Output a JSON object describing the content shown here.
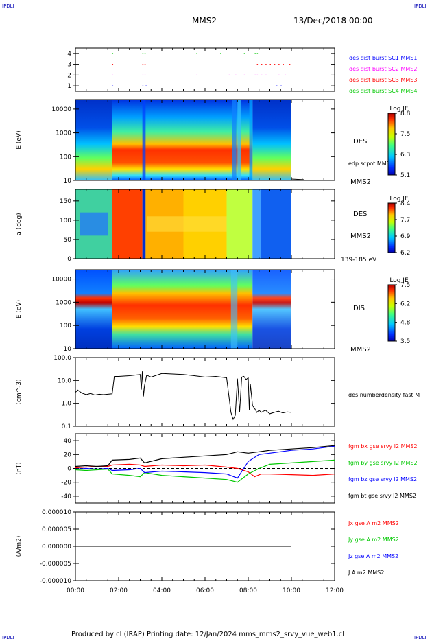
{
  "corner_label": "IPDLI",
  "header": {
    "spacecraft": "MMS2",
    "date": "13/Dec/2018 00:00"
  },
  "footer": {
    "text": "Produced by cl (IRAP)   Printing date: 12/Jan/2024   mms_mms2_srvy_vue_web1.cl"
  },
  "colors": {
    "ink": "#000000",
    "blue": "#0000ff",
    "red": "#ff0000",
    "green": "#00c800",
    "magenta": "#ff00ff",
    "navy": "#0000b4"
  },
  "chart_data": [
    {
      "id": "burst",
      "type": "scatter",
      "yticks": [
        "1",
        "2",
        "3",
        "4"
      ],
      "ylim": [
        0.5,
        4.5
      ],
      "xlim_hours": [
        0,
        12
      ],
      "legend": [
        {
          "text": "des dist burst SC1 MMS1",
          "color": "#0000ff"
        },
        {
          "text": "des dist burst SC2 MMS2",
          "color": "#ff00ff"
        },
        {
          "text": "des dist burst SC3 MMS3",
          "color": "#ff0000"
        },
        {
          "text": "des dist burst SC4 MMS4",
          "color": "#00c800"
        }
      ],
      "series": [
        {
          "sc": 4,
          "color": "#00c800",
          "times": [
            1.7,
            3.1,
            3.2,
            5.6,
            6.7,
            7.8,
            8.3,
            8.4
          ]
        },
        {
          "sc": 3,
          "color": "#ff0000",
          "times": [
            1.7,
            3.1,
            3.2,
            8.4,
            8.6,
            8.8,
            9.0,
            9.2,
            9.4,
            9.6,
            9.9
          ]
        },
        {
          "sc": 2,
          "color": "#ff00ff",
          "times": [
            1.7,
            3.1,
            3.2,
            5.6,
            7.1,
            7.4,
            7.8,
            8.3,
            8.4,
            8.6,
            8.8,
            9.4,
            9.7
          ]
        },
        {
          "sc": 1,
          "color": "#0000ff",
          "times": [
            1.7,
            3.1,
            3.25,
            9.3,
            9.5
          ]
        }
      ]
    },
    {
      "id": "des_energy",
      "type": "heatmap",
      "ylabel": "E (eV)",
      "yticks": [
        "10",
        "100",
        "1000",
        "10000"
      ],
      "ylim_log10": [
        1,
        4.4
      ],
      "right_labels": [
        "DES",
        "edp scpot MMS2",
        "MMS2"
      ],
      "colorbar": {
        "title": "Log JE",
        "ticks": [
          "8.8",
          "7.5",
          "6.3",
          "5.1"
        ],
        "range": [
          5.1,
          8.8
        ]
      }
    },
    {
      "id": "des_pitch",
      "type": "heatmap",
      "ylabel": "a (deg)",
      "yticks": [
        "0",
        "50",
        "100",
        "150"
      ],
      "ylim": [
        0,
        180
      ],
      "right_labels": [
        "DES",
        "MMS2",
        "139-185 eV"
      ],
      "colorbar": {
        "title": "Log JE",
        "ticks": [
          "8.4",
          "7.7",
          "6.9",
          "6.2"
        ],
        "range": [
          6.2,
          8.4
        ]
      }
    },
    {
      "id": "dis_energy",
      "type": "heatmap",
      "ylabel": "E (eV)",
      "yticks": [
        "10",
        "100",
        "1000",
        "10000"
      ],
      "ylim_log10": [
        1,
        4.4
      ],
      "right_labels": [
        "DIS",
        "MMS2"
      ],
      "colorbar": {
        "title": "Log JE",
        "ticks": [
          "7.5",
          "6.2",
          "4.8",
          "3.5"
        ],
        "range": [
          3.5,
          7.5
        ]
      }
    },
    {
      "id": "density",
      "type": "line",
      "ylabel": "(cm^-3)",
      "yticks": [
        "0.1",
        "1.0",
        "10.0",
        "100.0"
      ],
      "ylim_log10": [
        -1,
        2
      ],
      "series": [
        {
          "name": "des numberdensity fast M",
          "color": "#000000",
          "x": [
            0.0,
            0.1,
            0.3,
            0.5,
            0.7,
            0.9,
            1.1,
            1.3,
            1.5,
            1.7,
            1.8,
            2.0,
            2.5,
            3.0,
            3.05,
            3.1,
            3.15,
            3.2,
            3.3,
            3.5,
            4.0,
            4.5,
            5.0,
            5.5,
            6.0,
            6.5,
            7.0,
            7.2,
            7.3,
            7.4,
            7.5,
            7.6,
            7.7,
            7.8,
            7.9,
            8.0,
            8.05,
            8.1,
            8.2,
            8.3,
            8.4,
            8.5,
            8.6,
            8.7,
            8.8,
            9.0,
            9.2,
            9.4,
            9.6,
            9.8,
            10.0
          ],
          "y": [
            3.0,
            3.8,
            2.8,
            2.4,
            2.7,
            2.3,
            2.5,
            2.4,
            2.5,
            2.6,
            15,
            15,
            16,
            18,
            4,
            25,
            2,
            6,
            17,
            14,
            20,
            19,
            18,
            16,
            14,
            15,
            13,
            0.4,
            0.2,
            0.3,
            12,
            0.4,
            14,
            15,
            11,
            13,
            0.5,
            7,
            0.8,
            0.6,
            0.4,
            0.5,
            0.4,
            0.45,
            0.5,
            0.35,
            0.4,
            0.45,
            0.38,
            0.42,
            0.4
          ]
        }
      ]
    },
    {
      "id": "fgm",
      "type": "line",
      "ylabel": "(nT)",
      "yticks": [
        "-40",
        "-20",
        "0",
        "20",
        "40"
      ],
      "ylim": [
        -50,
        50
      ],
      "zero_line": true,
      "series": [
        {
          "name": "fgm bx gse srvy l2 MMS2",
          "color": "#ff0000",
          "x": [
            0,
            0.5,
            1.0,
            1.5,
            1.7,
            2.5,
            3.0,
            3.2,
            4.0,
            5.0,
            6.0,
            7.0,
            7.5,
            8.0,
            8.3,
            8.6,
            9.0,
            10.0,
            11.0,
            12.0
          ],
          "y": [
            1,
            2,
            3,
            3,
            5,
            6,
            5,
            3,
            5,
            4,
            5,
            2,
            0,
            -5,
            -12,
            -8,
            -8,
            -9,
            -10,
            -8
          ]
        },
        {
          "name": "fgm by gse srvy l2 MMS2",
          "color": "#00c800",
          "x": [
            0,
            0.5,
            1.0,
            1.5,
            1.7,
            2.5,
            3.0,
            3.2,
            4.0,
            5.0,
            6.0,
            7.0,
            7.5,
            8.0,
            8.5,
            9.0,
            10.0,
            11.0,
            12.0
          ],
          "y": [
            -2,
            -3,
            -2,
            -1,
            -8,
            -10,
            -12,
            -6,
            -10,
            -12,
            -14,
            -16,
            -20,
            -8,
            0,
            6,
            8,
            10,
            12
          ]
        },
        {
          "name": "fgm bz gse srvy l2 MMS2",
          "color": "#0000ff",
          "x": [
            0,
            0.5,
            1.0,
            1.5,
            1.7,
            2.5,
            3.0,
            3.2,
            4.0,
            5.0,
            6.0,
            7.0,
            7.5,
            8.0,
            8.5,
            9.0,
            10.0,
            11.0,
            12.0
          ],
          "y": [
            -1,
            0,
            -1,
            0,
            -3,
            -2,
            0,
            -6,
            -4,
            -5,
            -6,
            -8,
            -14,
            10,
            20,
            22,
            26,
            28,
            32
          ]
        },
        {
          "name": "fgm bt gse srvy l2 MMS2",
          "color": "#000000",
          "x": [
            0,
            0.5,
            1.0,
            1.5,
            1.7,
            2.5,
            3.0,
            3.2,
            4.0,
            5.0,
            6.0,
            7.0,
            7.5,
            8.0,
            8.5,
            9.0,
            10.0,
            11.0,
            12.0
          ],
          "y": [
            3,
            4,
            3,
            4,
            12,
            13,
            15,
            8,
            14,
            16,
            18,
            20,
            24,
            22,
            24,
            26,
            28,
            30,
            33
          ]
        }
      ]
    },
    {
      "id": "current",
      "type": "line",
      "ylabel": "(A/m2)",
      "yticks": [
        "-0.000010",
        "-0.000005",
        "0.000000",
        "0.000005",
        "0.000010"
      ],
      "ylim": [
        -1e-05,
        1e-05
      ],
      "xticks": [
        "00:00",
        "02:00",
        "04:00",
        "06:00",
        "08:00",
        "10:00",
        "12:00"
      ],
      "series": [
        {
          "name": "Jx gse A m2 MMS2",
          "color": "#ff0000",
          "x": [
            0,
            10
          ],
          "y": [
            0,
            0
          ]
        },
        {
          "name": "Jy gse A m2 MMS2",
          "color": "#00c800",
          "x": [
            0,
            10
          ],
          "y": [
            0,
            0
          ]
        },
        {
          "name": "Jz gse A m2 MMS2",
          "color": "#0000ff",
          "x": [
            0,
            10
          ],
          "y": [
            0,
            0
          ]
        },
        {
          "name": "J A m2 MMS2",
          "color": "#000000",
          "x": [
            0,
            10
          ],
          "y": [
            0,
            0
          ]
        }
      ]
    }
  ]
}
